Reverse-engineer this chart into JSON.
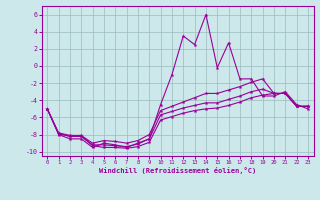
{
  "x": [
    0,
    1,
    2,
    3,
    4,
    5,
    6,
    7,
    8,
    9,
    10,
    11,
    12,
    13,
    14,
    15,
    16,
    17,
    18,
    19,
    20,
    21,
    22,
    23
  ],
  "line1": [
    -5.0,
    -8.0,
    -8.5,
    -8.5,
    -9.5,
    -9.0,
    -9.2,
    -9.5,
    -9.0,
    -8.5,
    -4.5,
    -1.0,
    3.5,
    2.5,
    6.0,
    -0.2,
    2.7,
    -1.5,
    -1.5,
    -3.5,
    -3.5,
    -3.0,
    -4.5,
    -5.0
  ],
  "line2": [
    -5.0,
    -7.8,
    -8.1,
    -8.1,
    -9.0,
    -8.7,
    -8.8,
    -9.0,
    -8.7,
    -8.0,
    -5.2,
    -4.7,
    -4.2,
    -3.7,
    -3.2,
    -3.2,
    -2.8,
    -2.4,
    -1.9,
    -1.5,
    -3.2,
    -3.2,
    -4.7,
    -4.7
  ],
  "line3": [
    -5.0,
    -7.9,
    -8.2,
    -8.2,
    -9.2,
    -9.2,
    -9.3,
    -9.4,
    -9.1,
    -8.5,
    -5.7,
    -5.3,
    -4.9,
    -4.6,
    -4.3,
    -4.3,
    -3.9,
    -3.5,
    -3.0,
    -2.7,
    -3.2,
    -3.2,
    -4.7,
    -4.7
  ],
  "line4": [
    -5.0,
    -7.9,
    -8.2,
    -8.2,
    -9.3,
    -9.5,
    -9.5,
    -9.6,
    -9.4,
    -8.9,
    -6.3,
    -5.9,
    -5.5,
    -5.2,
    -5.0,
    -4.9,
    -4.6,
    -4.2,
    -3.7,
    -3.4,
    -3.2,
    -3.2,
    -4.7,
    -4.7
  ],
  "color": "#990099",
  "bg_color": "#cce8ea",
  "grid_color": "#99bbbb",
  "xlabel": "Windchill (Refroidissement éolien,°C)",
  "ylim": [
    -10.5,
    7.0
  ],
  "xlim": [
    -0.5,
    23.5
  ],
  "yticks": [
    -10,
    -8,
    -6,
    -4,
    -2,
    0,
    2,
    4,
    6
  ],
  "xticks": [
    0,
    1,
    2,
    3,
    4,
    5,
    6,
    7,
    8,
    9,
    10,
    11,
    12,
    13,
    14,
    15,
    16,
    17,
    18,
    19,
    20,
    21,
    22,
    23
  ]
}
